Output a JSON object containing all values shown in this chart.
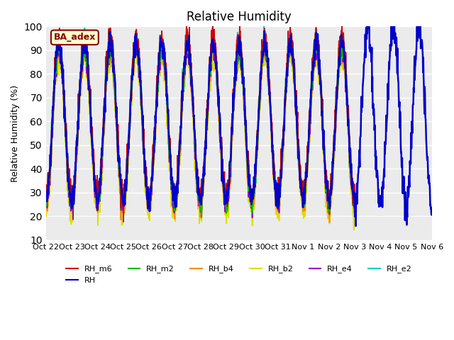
{
  "title": "Relative Humidity",
  "ylabel": "Relative Humidity (%)",
  "ylim": [
    10,
    100
  ],
  "yticks": [
    10,
    20,
    30,
    40,
    50,
    60,
    70,
    80,
    90,
    100
  ],
  "plot_bg": "#ebebeb",
  "series": {
    "RH_m6": {
      "color": "#cc0000",
      "lw": 1.2,
      "zorder": 5
    },
    "RH": {
      "color": "#0000cc",
      "lw": 1.8,
      "zorder": 6
    },
    "RH_m2": {
      "color": "#00bb00",
      "lw": 1.2,
      "zorder": 4
    },
    "RH_b4": {
      "color": "#ff8800",
      "lw": 1.2,
      "zorder": 3
    },
    "RH_b2": {
      "color": "#dddd00",
      "lw": 1.2,
      "zorder": 2
    },
    "RH_e4": {
      "color": "#9900cc",
      "lw": 1.2,
      "zorder": 3
    },
    "RH_e2": {
      "color": "#00cccc",
      "lw": 1.5,
      "zorder": 2
    }
  },
  "annotation_text": "BA_adex",
  "annotation_color": "#8b0000",
  "annotation_bg": "#ffffcc",
  "n_points": 1440,
  "seed": 42,
  "xtick_labels": [
    "Oct 22",
    "Oct 23",
    "Oct 24",
    "Oct 25",
    "Oct 26",
    "Oct 27",
    "Oct 28",
    "Oct 29",
    "Oct 30",
    "Oct 31",
    "Nov 1",
    "Nov 2",
    "Nov 3",
    "Nov 4",
    "Nov 5",
    "Nov 6"
  ],
  "cutoff_day": 12.0,
  "other_sensors": [
    "RH_m6",
    "RH_m2",
    "RH_b4",
    "RH_b2",
    "RH_e4",
    "RH_e2"
  ]
}
